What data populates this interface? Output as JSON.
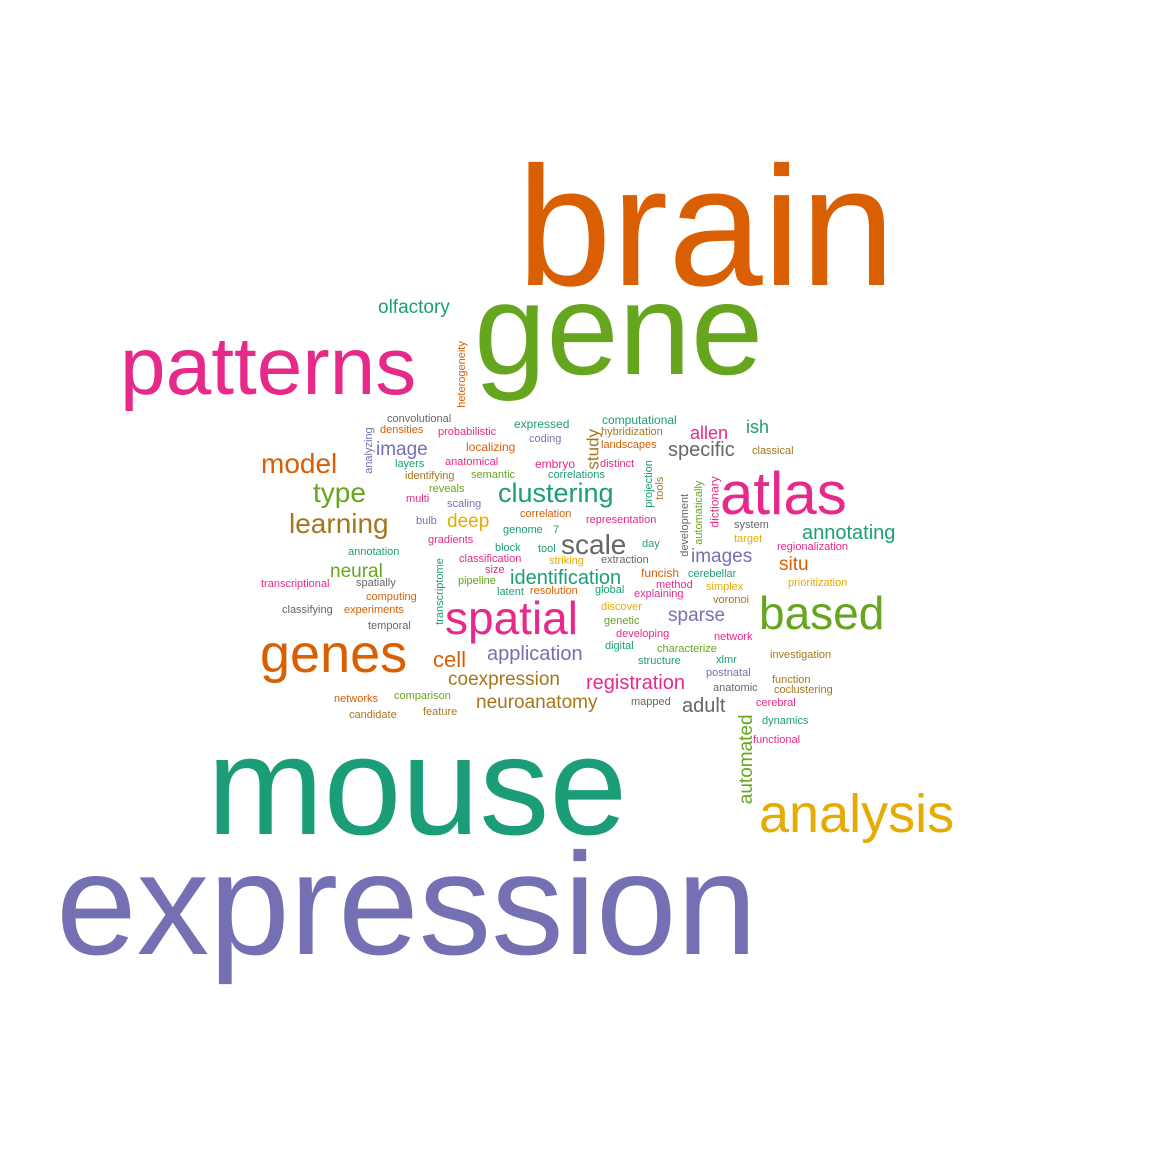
{
  "colors": {
    "orange": "#d95f02",
    "green": "#66a61e",
    "teal": "#1b9e77",
    "purple": "#7570b3",
    "magenta": "#e7298a",
    "gold": "#e6ab02",
    "brown": "#a6761d",
    "gray": "#666666"
  },
  "words": [
    {
      "text": "brain",
      "color": "orange"
    },
    {
      "text": "gene",
      "color": "green"
    },
    {
      "text": "patterns",
      "color": "magenta"
    },
    {
      "text": "mouse",
      "color": "teal"
    },
    {
      "text": "expression",
      "color": "purple"
    },
    {
      "text": "analysis",
      "color": "gold"
    },
    {
      "text": "atlas",
      "color": "magenta"
    },
    {
      "text": "genes",
      "color": "orange"
    },
    {
      "text": "spatial",
      "color": "magenta"
    },
    {
      "text": "based",
      "color": "green"
    },
    {
      "text": "olfactory",
      "color": "teal"
    },
    {
      "text": "heterogeneity",
      "color": "orange"
    },
    {
      "text": "convolutional",
      "color": "gray"
    },
    {
      "text": "densities",
      "color": "orange"
    },
    {
      "text": "probabilistic",
      "color": "magenta"
    },
    {
      "text": "expressed",
      "color": "teal"
    },
    {
      "text": "computational",
      "color": "teal"
    },
    {
      "text": "hybridization",
      "color": "brown"
    },
    {
      "text": "coding",
      "color": "purple"
    },
    {
      "text": "study",
      "color": "brown"
    },
    {
      "text": "allen",
      "color": "magenta"
    },
    {
      "text": "ish",
      "color": "teal"
    },
    {
      "text": "classical",
      "color": "brown"
    },
    {
      "text": "analyzing",
      "color": "purple"
    },
    {
      "text": "image",
      "color": "purple"
    },
    {
      "text": "localizing",
      "color": "orange"
    },
    {
      "text": "landscapes",
      "color": "orange"
    },
    {
      "text": "specific",
      "color": "gray"
    },
    {
      "text": "model",
      "color": "orange"
    },
    {
      "text": "layers",
      "color": "teal"
    },
    {
      "text": "anatomical",
      "color": "magenta"
    },
    {
      "text": "embryo",
      "color": "magenta"
    },
    {
      "text": "distinct",
      "color": "magenta"
    },
    {
      "text": "identifying",
      "color": "brown"
    },
    {
      "text": "semantic",
      "color": "green"
    },
    {
      "text": "correlations",
      "color": "teal"
    },
    {
      "text": "projection",
      "color": "teal"
    },
    {
      "text": "tools",
      "color": "brown"
    },
    {
      "text": "type",
      "color": "green"
    },
    {
      "text": "reveals",
      "color": "green"
    },
    {
      "text": "clustering",
      "color": "teal"
    },
    {
      "text": "development",
      "color": "gray"
    },
    {
      "text": "automatically",
      "color": "green"
    },
    {
      "text": "dictionary",
      "color": "magenta"
    },
    {
      "text": "multi",
      "color": "magenta"
    },
    {
      "text": "scaling",
      "color": "purple"
    },
    {
      "text": "learning",
      "color": "brown"
    },
    {
      "text": "bulb",
      "color": "purple"
    },
    {
      "text": "deep",
      "color": "gold"
    },
    {
      "text": "correlation",
      "color": "orange"
    },
    {
      "text": "genome",
      "color": "teal"
    },
    {
      "text": "7",
      "color": "teal"
    },
    {
      "text": "representation",
      "color": "magenta"
    },
    {
      "text": "system",
      "color": "gray"
    },
    {
      "text": "annotating",
      "color": "teal"
    },
    {
      "text": "gradients",
      "color": "magenta"
    },
    {
      "text": "target",
      "color": "gold"
    },
    {
      "text": "block",
      "color": "teal"
    },
    {
      "text": "tool",
      "color": "teal"
    },
    {
      "text": "scale",
      "color": "gray"
    },
    {
      "text": "day",
      "color": "teal"
    },
    {
      "text": "regionalization",
      "color": "magenta"
    },
    {
      "text": "annotation",
      "color": "teal"
    },
    {
      "text": "classification",
      "color": "magenta"
    },
    {
      "text": "extraction",
      "color": "gray"
    },
    {
      "text": "images",
      "color": "purple"
    },
    {
      "text": "neural",
      "color": "green"
    },
    {
      "text": "size",
      "color": "magenta"
    },
    {
      "text": "striking",
      "color": "gold"
    },
    {
      "text": "situ",
      "color": "orange"
    },
    {
      "text": "transcriptome",
      "color": "teal"
    },
    {
      "text": "funcish",
      "color": "orange"
    },
    {
      "text": "cerebellar",
      "color": "teal"
    },
    {
      "text": "spatially",
      "color": "gray"
    },
    {
      "text": "pipeline",
      "color": "green"
    },
    {
      "text": "identification",
      "color": "teal"
    },
    {
      "text": "method",
      "color": "magenta"
    },
    {
      "text": "prioritization",
      "color": "gold"
    },
    {
      "text": "transcriptional",
      "color": "magenta"
    },
    {
      "text": "simplex",
      "color": "gold"
    },
    {
      "text": "computing",
      "color": "orange"
    },
    {
      "text": "latent",
      "color": "teal"
    },
    {
      "text": "resolution",
      "color": "orange"
    },
    {
      "text": "global",
      "color": "teal"
    },
    {
      "text": "explaining",
      "color": "magenta"
    },
    {
      "text": "voronoi",
      "color": "brown"
    },
    {
      "text": "classifying",
      "color": "gray"
    },
    {
      "text": "experiments",
      "color": "orange"
    },
    {
      "text": "discover",
      "color": "gold"
    },
    {
      "text": "sparse",
      "color": "purple"
    },
    {
      "text": "temporal",
      "color": "gray"
    },
    {
      "text": "genetic",
      "color": "green"
    },
    {
      "text": "developing",
      "color": "magenta"
    },
    {
      "text": "network",
      "color": "magenta"
    },
    {
      "text": "cell",
      "color": "orange"
    },
    {
      "text": "application",
      "color": "purple"
    },
    {
      "text": "digital",
      "color": "teal"
    },
    {
      "text": "characterize",
      "color": "green"
    },
    {
      "text": "structure",
      "color": "teal"
    },
    {
      "text": "xlmr",
      "color": "teal"
    },
    {
      "text": "investigation",
      "color": "brown"
    },
    {
      "text": "coexpression",
      "color": "brown"
    },
    {
      "text": "registration",
      "color": "magenta"
    },
    {
      "text": "postnatal",
      "color": "purple"
    },
    {
      "text": "function",
      "color": "brown"
    },
    {
      "text": "anatomic",
      "color": "gray"
    },
    {
      "text": "coclustering",
      "color": "brown"
    },
    {
      "text": "networks",
      "color": "orange"
    },
    {
      "text": "comparison",
      "color": "green"
    },
    {
      "text": "neuroanatomy",
      "color": "brown"
    },
    {
      "text": "mapped",
      "color": "gray"
    },
    {
      "text": "adult",
      "color": "gray"
    },
    {
      "text": "cerebral",
      "color": "magenta"
    },
    {
      "text": "candidate",
      "color": "brown"
    },
    {
      "text": "feature",
      "color": "brown"
    },
    {
      "text": "automated",
      "color": "green"
    },
    {
      "text": "dynamics",
      "color": "teal"
    },
    {
      "text": "functional",
      "color": "magenta"
    }
  ]
}
